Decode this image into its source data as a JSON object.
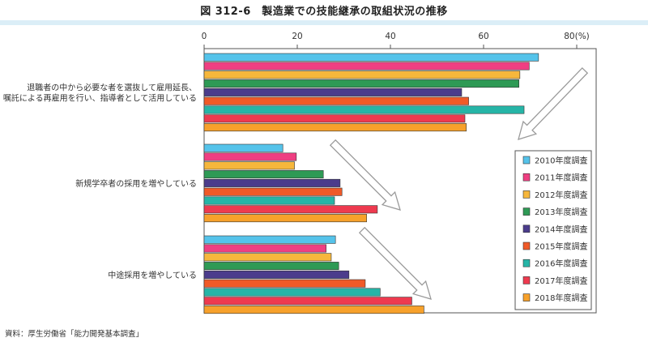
{
  "header": {
    "title": "図 312-6　製造業での技能継承の取組状況の推移"
  },
  "footer": {
    "source": "資料：厚生労働省「能力開発基本調査」"
  },
  "colors": {
    "title_band": "#dbeef7"
  },
  "chart_data": {
    "type": "bar",
    "orientation": "horizontal",
    "title": "図 312-6　製造業での技能継承の取組状況の推移",
    "xlabel": "",
    "ylabel": "",
    "xlim": [
      0,
      80
    ],
    "x_ticks": [
      0,
      20,
      40,
      60,
      80
    ],
    "x_tick_labels": [
      "0",
      "20",
      "40",
      "60",
      "80(%)"
    ],
    "grid": false,
    "legend_position": "right",
    "categories": [
      "退職者の中から必要な者を選抜して雇用延長、嘱託による再雇用を行い、指導者として活用している",
      "新規学卒者の採用を増やしている",
      "中途採用を増やしている"
    ],
    "category_lines": [
      [
        "退職者の中から必要な者を選抜して雇用延長、",
        "嘱託による再雇用を行い、指導者として活用している"
      ],
      [
        "新規学卒者の採用を増やしている"
      ],
      [
        "中途採用を増やしている"
      ]
    ],
    "series": [
      {
        "name": "2010年度調査",
        "color": "#55c3ea",
        "values": [
          71.8,
          16.9,
          28.2
        ]
      },
      {
        "name": "2011年度調査",
        "color": "#ef3f82",
        "values": [
          69.8,
          19.8,
          26.2
        ]
      },
      {
        "name": "2012年度調査",
        "color": "#f6b73c",
        "values": [
          67.8,
          19.4,
          27.3
        ]
      },
      {
        "name": "2013年度調査",
        "color": "#2e9a55",
        "values": [
          67.6,
          25.6,
          28.9
        ]
      },
      {
        "name": "2014年度調査",
        "color": "#4b3c8c",
        "values": [
          55.3,
          29.2,
          31.1
        ]
      },
      {
        "name": "2015年度調査",
        "color": "#f05a28",
        "values": [
          56.8,
          29.6,
          34.6
        ]
      },
      {
        "name": "2016年度調査",
        "color": "#26b5a7",
        "values": [
          68.7,
          28.0,
          37.8
        ]
      },
      {
        "name": "2017年度調査",
        "color": "#ee3a4f",
        "values": [
          56.0,
          37.2,
          44.6
        ]
      },
      {
        "name": "2018年度調査",
        "color": "#f7a12b",
        "values": [
          56.3,
          34.9,
          47.2
        ]
      }
    ]
  }
}
